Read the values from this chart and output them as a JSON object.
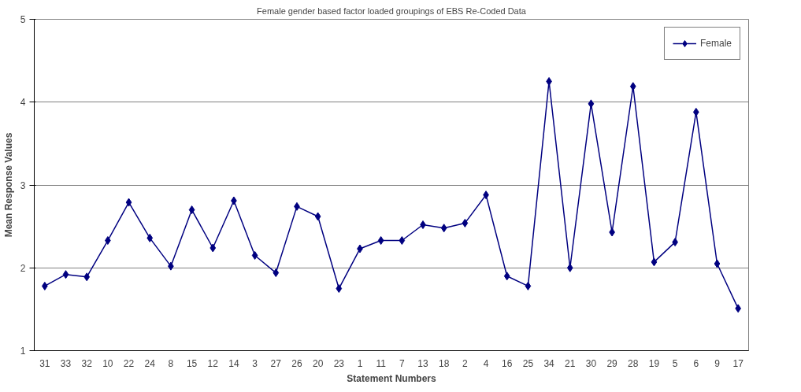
{
  "chart_data": {
    "type": "line",
    "title": "Female gender based factor loaded groupings of EBS Re-Coded Data",
    "xlabel": "Statement Numbers",
    "ylabel": "Mean Response Values",
    "categories": [
      "31",
      "33",
      "32",
      "10",
      "22",
      "24",
      "8",
      "15",
      "12",
      "14",
      "3",
      "27",
      "26",
      "20",
      "23",
      "1",
      "11",
      "7",
      "13",
      "18",
      "2",
      "4",
      "16",
      "25",
      "34",
      "21",
      "30",
      "29",
      "28",
      "19",
      "5",
      "6",
      "9",
      "17"
    ],
    "series": [
      {
        "name": "Female",
        "color": "#000080",
        "values": [
          1.78,
          1.92,
          1.89,
          2.33,
          2.79,
          2.36,
          2.02,
          2.7,
          2.24,
          2.81,
          2.15,
          1.94,
          2.74,
          2.62,
          1.75,
          2.23,
          2.33,
          2.33,
          2.52,
          2.48,
          2.54,
          2.88,
          1.9,
          1.78,
          4.25,
          2.0,
          3.98,
          2.43,
          4.19,
          2.07,
          2.31,
          3.88,
          2.05,
          1.51
        ]
      }
    ],
    "ylim": [
      1,
      5
    ],
    "yticks": [
      1,
      2,
      3,
      4,
      5
    ],
    "grid": "y",
    "legend": "top right",
    "marker": "diamond",
    "line_style": "solid"
  }
}
